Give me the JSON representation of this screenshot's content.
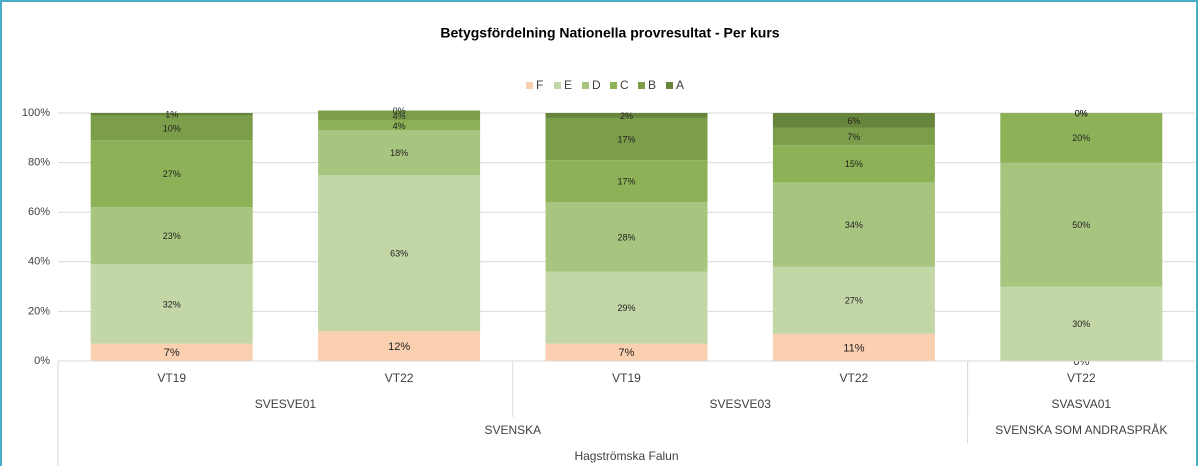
{
  "chart_data": {
    "type": "bar",
    "stacked": true,
    "title": "Betygsfördelning Nationella provresultat - Per kurs",
    "categories": [
      "VT19",
      "VT22",
      "VT19",
      "VT22",
      "VT22"
    ],
    "category_levels": [
      {
        "labels": [
          "SVESVE01",
          "SVESVE03",
          "SVASVA01"
        ],
        "spans": [
          2,
          2,
          1
        ]
      },
      {
        "labels": [
          "SVENSKA",
          "SVENSKA SOM ANDRASPRÅK"
        ],
        "spans": [
          4,
          1
        ]
      },
      {
        "labels": [
          "Hagströmska Falun"
        ],
        "spans": [
          5
        ]
      }
    ],
    "series": [
      {
        "name": "F",
        "color": "#fbd0b0",
        "values": [
          7,
          12,
          7,
          11,
          0
        ],
        "value_labels": [
          "7%",
          "12%",
          "7%",
          "11%",
          "0%"
        ]
      },
      {
        "name": "E",
        "color": "#c3d6a6",
        "values": [
          32,
          63,
          29,
          27,
          30
        ],
        "value_labels": [
          "32%",
          "63%",
          "29%",
          "27%",
          "30%"
        ]
      },
      {
        "name": "D",
        "color": "#a8c580",
        "values": [
          23,
          18,
          28,
          34,
          50
        ],
        "value_labels": [
          "23%",
          "18%",
          "28%",
          "34%",
          "50%"
        ]
      },
      {
        "name": "C",
        "color": "#8db156",
        "values": [
          27,
          4,
          17,
          15,
          20
        ],
        "value_labels": [
          "27%",
          "4%",
          "17%",
          "15%",
          "20%"
        ]
      },
      {
        "name": "B",
        "color": "#7c9e4b",
        "values": [
          10,
          4,
          17,
          7,
          0
        ],
        "value_labels": [
          "10%",
          "4%",
          "17%",
          "7%",
          "0%"
        ]
      },
      {
        "name": "A",
        "color": "#67863b",
        "values": [
          1,
          0,
          2,
          6,
          0
        ],
        "value_labels": [
          "1%",
          "0%",
          "2%",
          "6%",
          "0%"
        ]
      }
    ],
    "ylim": [
      0,
      100
    ],
    "yticks": [
      {
        "value": 0,
        "label": "0%"
      },
      {
        "value": 20,
        "label": "20%"
      },
      {
        "value": 40,
        "label": "40%"
      },
      {
        "value": 60,
        "label": "60%"
      },
      {
        "value": 80,
        "label": "80%"
      },
      {
        "value": 100,
        "label": "100%"
      }
    ],
    "grid": true,
    "legend": "top"
  }
}
